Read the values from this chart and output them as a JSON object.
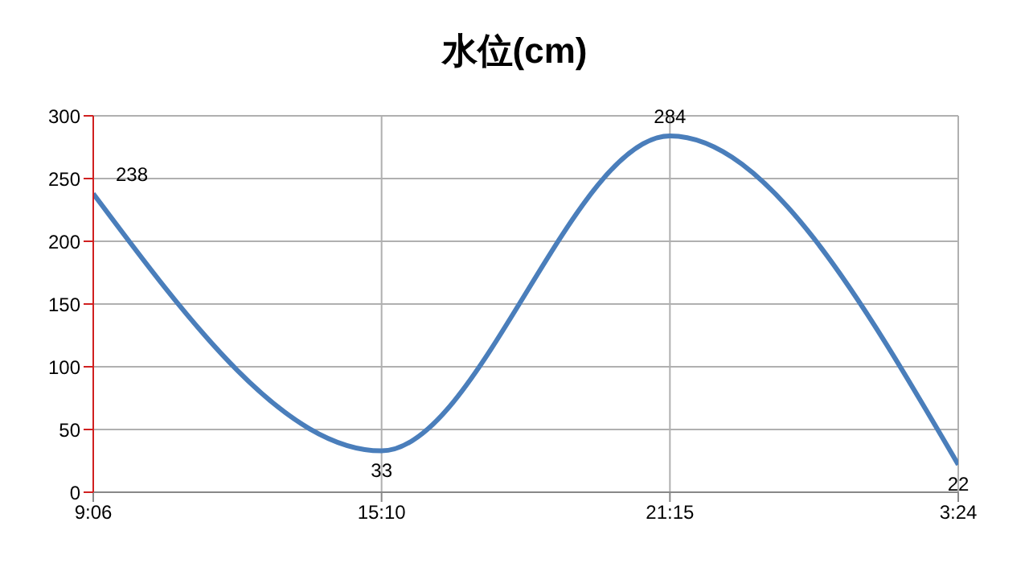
{
  "chart_data": {
    "type": "line",
    "title": "水位(cm)",
    "categories": [
      "9:06",
      "15:10",
      "21:15",
      "3:24"
    ],
    "series": [
      {
        "color": "#4a7ebb",
        "values": [
          238,
          33,
          284,
          22
        ]
      }
    ],
    "ylim": [
      0,
      300
    ],
    "yticks": [
      0,
      50,
      100,
      150,
      200,
      250,
      300
    ],
    "grid": true,
    "marker": "none",
    "line_style": "solid",
    "data_labels": true
  }
}
